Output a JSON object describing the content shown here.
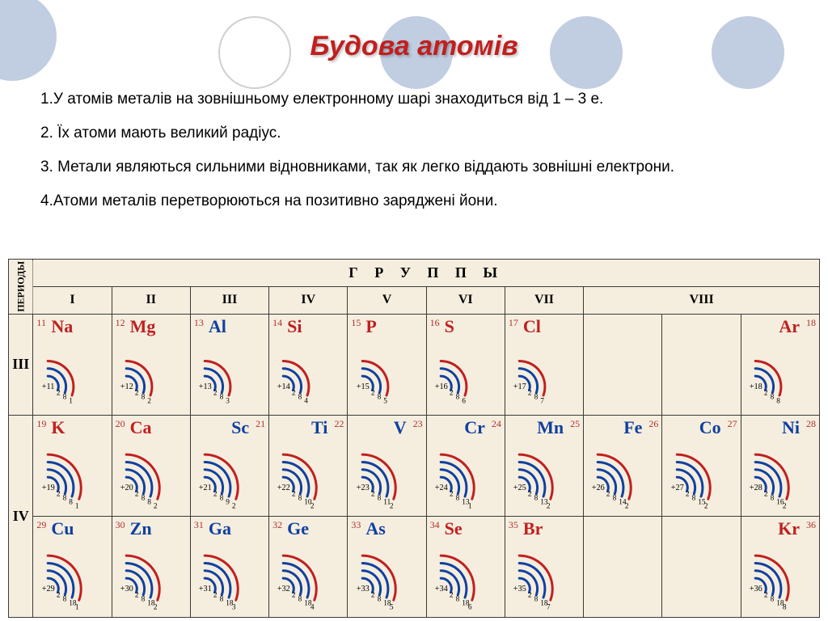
{
  "title": "Будова атомів",
  "bullets": [
    "1.У атомів металів на зовнішньому електронному шарі знаходиться від 1 – 3 е.",
    "2. Їх атоми мають великий радіус.",
    "3. Метали являються сильними відновниками, так як легко віддають зовнішні електрони.",
    "4.Атоми металів перетворюються на позитивно заряджені йони."
  ],
  "table": {
    "period_header": "ПЕРИОДЫ",
    "groups_title": "Г Р У П П Ы",
    "group_labels": [
      "I",
      "II",
      "III",
      "IV",
      "V",
      "VI",
      "VII",
      "VIII"
    ],
    "colors": {
      "metal": "#c02020",
      "nonmetal": "#1040a0",
      "charge_red": "#c02020",
      "charge_blue": "#1040a0",
      "bg": "#f5eedf",
      "border": "#3a3a3a"
    },
    "periods": [
      {
        "num": "III",
        "rows": [
          [
            {
              "n": "11",
              "sym": "Na",
              "symColor": "#c02020",
              "charge": "+11",
              "shells": [
                2,
                8,
                1
              ],
              "colorOuter": "#c02020"
            },
            {
              "n": "12",
              "sym": "Mg",
              "symColor": "#c02020",
              "charge": "+12",
              "shells": [
                2,
                8,
                2
              ],
              "colorOuter": "#c02020"
            },
            {
              "n": "13",
              "sym": "Al",
              "symColor": "#1040a0",
              "charge": "+13",
              "shells": [
                2,
                8,
                3
              ],
              "colorOuter": "#c02020"
            },
            {
              "n": "14",
              "sym": "Si",
              "symColor": "#c02020",
              "charge": "+14",
              "shells": [
                2,
                8,
                4
              ],
              "colorOuter": "#c02020"
            },
            {
              "n": "15",
              "sym": "P",
              "symColor": "#c02020",
              "charge": "+15",
              "shells": [
                2,
                8,
                5
              ],
              "colorOuter": "#c02020"
            },
            {
              "n": "16",
              "sym": "S",
              "symColor": "#c02020",
              "charge": "+16",
              "shells": [
                2,
                8,
                6
              ],
              "colorOuter": "#c02020"
            },
            {
              "n": "17",
              "sym": "Cl",
              "symColor": "#c02020",
              "charge": "+17",
              "shells": [
                2,
                8,
                7
              ],
              "colorOuter": "#c02020"
            },
            null,
            null,
            {
              "n": "18",
              "sym": "Ar",
              "symColor": "#c02020",
              "charge": "+18",
              "shells": [
                2,
                8,
                8
              ],
              "colorOuter": "#c02020",
              "numRight": true,
              "symRight": true
            }
          ]
        ]
      },
      {
        "num": "IV",
        "rows": [
          [
            {
              "n": "19",
              "sym": "K",
              "symColor": "#c02020",
              "charge": "+19",
              "shells": [
                2,
                8,
                8,
                1
              ],
              "colorOuter": "#c02020"
            },
            {
              "n": "20",
              "sym": "Ca",
              "symColor": "#c02020",
              "charge": "+20",
              "shells": [
                2,
                8,
                8,
                2
              ],
              "colorOuter": "#c02020"
            },
            {
              "n": "21",
              "sym": "Sc",
              "symColor": "#1040a0",
              "charge": "+21",
              "shells": [
                2,
                8,
                9,
                2
              ],
              "colorOuter": "#c02020",
              "numRight": true,
              "symRight": true
            },
            {
              "n": "22",
              "sym": "Ti",
              "symColor": "#1040a0",
              "charge": "+22",
              "shells": [
                2,
                8,
                10,
                2
              ],
              "colorOuter": "#c02020",
              "numRight": true,
              "symRight": true
            },
            {
              "n": "23",
              "sym": "V",
              "symColor": "#1040a0",
              "charge": "+23",
              "shells": [
                2,
                8,
                11,
                2
              ],
              "colorOuter": "#c02020",
              "numRight": true,
              "symRight": true
            },
            {
              "n": "24",
              "sym": "Cr",
              "symColor": "#1040a0",
              "charge": "+24",
              "shells": [
                2,
                8,
                13,
                1
              ],
              "colorOuter": "#c02020",
              "numRight": true,
              "symRight": true
            },
            {
              "n": "25",
              "sym": "Mn",
              "symColor": "#1040a0",
              "charge": "+25",
              "shells": [
                2,
                8,
                13,
                2
              ],
              "colorOuter": "#c02020",
              "numRight": true,
              "symRight": true
            },
            {
              "n": "26",
              "sym": "Fe",
              "symColor": "#1040a0",
              "charge": "+26",
              "shells": [
                2,
                8,
                14,
                2
              ],
              "colorOuter": "#c02020",
              "numRight": true,
              "symRight": true
            },
            {
              "n": "27",
              "sym": "Co",
              "symColor": "#1040a0",
              "charge": "+27",
              "shells": [
                2,
                8,
                15,
                2
              ],
              "colorOuter": "#c02020",
              "numRight": true,
              "symRight": true
            },
            {
              "n": "28",
              "sym": "Ni",
              "symColor": "#1040a0",
              "charge": "+28",
              "shells": [
                2,
                8,
                16,
                2
              ],
              "colorOuter": "#c02020",
              "numRight": true,
              "symRight": true
            }
          ],
          [
            {
              "n": "29",
              "sym": "Cu",
              "symColor": "#1040a0",
              "charge": "+29",
              "shells": [
                2,
                8,
                18,
                1
              ],
              "colorOuter": "#c02020"
            },
            {
              "n": "30",
              "sym": "Zn",
              "symColor": "#1040a0",
              "charge": "+30",
              "shells": [
                2,
                8,
                18,
                2
              ],
              "colorOuter": "#c02020"
            },
            {
              "n": "31",
              "sym": "Ga",
              "symColor": "#1040a0",
              "charge": "+31",
              "shells": [
                2,
                8,
                18,
                3
              ],
              "colorOuter": "#c02020"
            },
            {
              "n": "32",
              "sym": "Ge",
              "symColor": "#1040a0",
              "charge": "+32",
              "shells": [
                2,
                8,
                18,
                4
              ],
              "colorOuter": "#c02020"
            },
            {
              "n": "33",
              "sym": "As",
              "symColor": "#1040a0",
              "charge": "+33",
              "shells": [
                2,
                8,
                18,
                5
              ],
              "colorOuter": "#c02020"
            },
            {
              "n": "34",
              "sym": "Se",
              "symColor": "#c02020",
              "charge": "+34",
              "shells": [
                2,
                8,
                18,
                6
              ],
              "colorOuter": "#c02020"
            },
            {
              "n": "35",
              "sym": "Br",
              "symColor": "#c02020",
              "charge": "+35",
              "shells": [
                2,
                8,
                18,
                7
              ],
              "colorOuter": "#c02020"
            },
            null,
            null,
            {
              "n": "36",
              "sym": "Kr",
              "symColor": "#c02020",
              "charge": "+36",
              "shells": [
                2,
                8,
                18,
                8
              ],
              "colorOuter": "#c02020",
              "numRight": true,
              "symRight": true
            }
          ]
        ]
      }
    ]
  }
}
